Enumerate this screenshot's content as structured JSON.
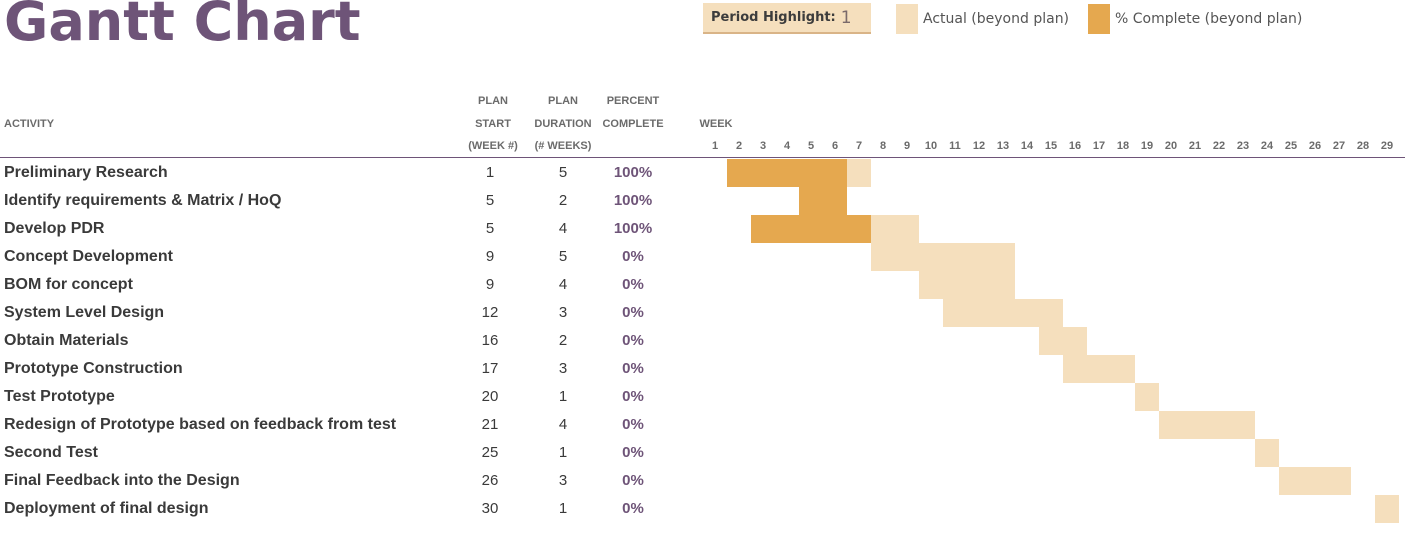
{
  "title": "Gantt Chart",
  "period_highlight": {
    "label": "Period Highlight:",
    "value": "1"
  },
  "legend": {
    "actual_label": "Actual (beyond plan)",
    "complete_label": "% Complete (beyond plan)",
    "actual_color": "#f5dfbd",
    "complete_color": "#e5a84f"
  },
  "columns": {
    "activity": "ACTIVITY",
    "plan_start": [
      "PLAN",
      "START",
      "(WEEK #)"
    ],
    "plan_duration": [
      "PLAN",
      "DURATION",
      "(# WEEKS)"
    ],
    "percent_complete": [
      "PERCENT",
      "COMPLETE"
    ],
    "week": "WEEK"
  },
  "weeks": [
    1,
    2,
    3,
    4,
    5,
    6,
    7,
    8,
    9,
    10,
    11,
    12,
    13,
    14,
    15,
    16,
    17,
    18,
    19,
    20,
    21,
    22,
    23,
    24,
    25,
    26,
    27,
    28,
    29
  ],
  "activities": [
    {
      "name": "Preliminary Research",
      "start": 1,
      "duration": 5,
      "percent": "100%",
      "actual_start": 2,
      "actual_duration": 6,
      "complete_weeks": [
        2,
        6
      ]
    },
    {
      "name": "Identify requirements & Matrix / HoQ",
      "start": 5,
      "duration": 2,
      "percent": "100%",
      "actual_start": 5,
      "actual_duration": 2,
      "complete_weeks": [
        5,
        6
      ]
    },
    {
      "name": "Develop PDR",
      "start": 5,
      "duration": 4,
      "percent": "100%",
      "actual_start": 3,
      "actual_duration": 7,
      "complete_weeks": [
        3,
        7
      ]
    },
    {
      "name": "Concept Development",
      "start": 9,
      "duration": 5,
      "percent": "0%",
      "actual_start": 8,
      "actual_duration": 6,
      "complete_weeks": null
    },
    {
      "name": "BOM for concept",
      "start": 9,
      "duration": 4,
      "percent": "0%",
      "actual_start": 10,
      "actual_duration": 4,
      "complete_weeks": null
    },
    {
      "name": "System Level Design",
      "start": 12,
      "duration": 3,
      "percent": "0%",
      "actual_start": 11,
      "actual_duration": 5,
      "complete_weeks": null
    },
    {
      "name": "Obtain Materials",
      "start": 16,
      "duration": 2,
      "percent": "0%",
      "actual_start": 15,
      "actual_duration": 2,
      "complete_weeks": null
    },
    {
      "name": "Prototype Construction",
      "start": 17,
      "duration": 3,
      "percent": "0%",
      "actual_start": 16,
      "actual_duration": 3,
      "complete_weeks": null
    },
    {
      "name": "Test Prototype",
      "start": 20,
      "duration": 1,
      "percent": "0%",
      "actual_start": 19,
      "actual_duration": 1,
      "complete_weeks": null
    },
    {
      "name": "Redesign of Prototype based on feedback from test",
      "start": 21,
      "duration": 4,
      "percent": "0%",
      "actual_start": 20,
      "actual_duration": 4,
      "complete_weeks": null
    },
    {
      "name": "Second Test",
      "start": 25,
      "duration": 1,
      "percent": "0%",
      "actual_start": 24,
      "actual_duration": 1,
      "complete_weeks": null
    },
    {
      "name": "Final Feedback into the Design",
      "start": 26,
      "duration": 3,
      "percent": "0%",
      "actual_start": 25,
      "actual_duration": 3,
      "complete_weeks": null
    },
    {
      "name": "Deployment of final design",
      "start": 30,
      "duration": 1,
      "percent": "0%",
      "actual_start": 29,
      "actual_duration": 1,
      "complete_weeks": null
    }
  ]
}
